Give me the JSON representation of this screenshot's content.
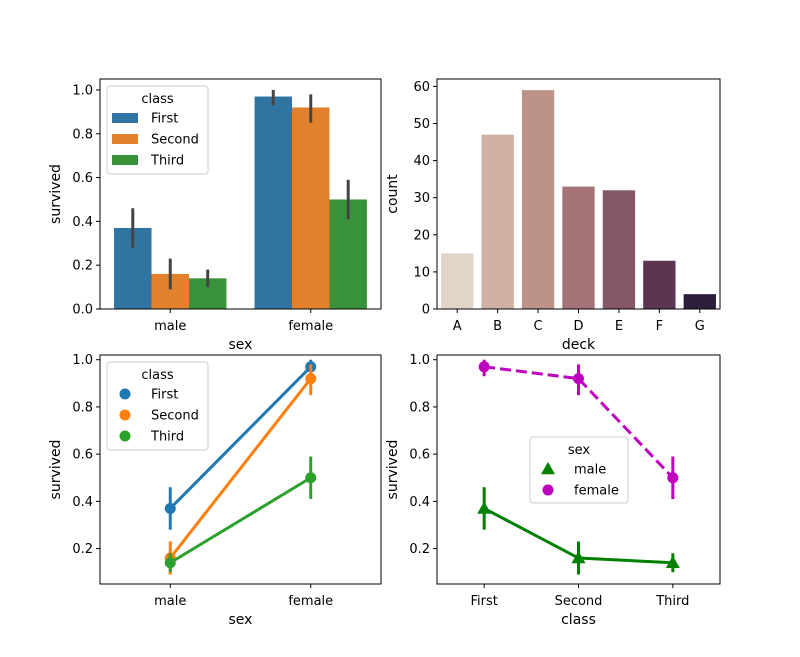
{
  "chart_data": [
    {
      "type": "bar",
      "xlabel": "sex",
      "ylabel": "survived",
      "categories": [
        "male",
        "female"
      ],
      "ylim": [
        0,
        1.05
      ],
      "yticks": [
        "0.0",
        "0.2",
        "0.4",
        "0.6",
        "0.8",
        "1.0"
      ],
      "legend": {
        "title": "class",
        "position": "upper-left"
      },
      "series": [
        {
          "name": "First",
          "color": "#3274a1",
          "values": [
            0.37,
            0.97
          ],
          "ci": [
            [
              0.28,
              0.46
            ],
            [
              0.93,
              1.0
            ]
          ]
        },
        {
          "name": "Second",
          "color": "#e1812c",
          "values": [
            0.16,
            0.92
          ],
          "ci": [
            [
              0.09,
              0.23
            ],
            [
              0.85,
              0.98
            ]
          ]
        },
        {
          "name": "Third",
          "color": "#3a923a",
          "values": [
            0.14,
            0.5
          ],
          "ci": [
            [
              0.1,
              0.18
            ],
            [
              0.41,
              0.59
            ]
          ]
        }
      ]
    },
    {
      "type": "bar",
      "xlabel": "deck",
      "ylabel": "count",
      "categories": [
        "A",
        "B",
        "C",
        "D",
        "E",
        "F",
        "G"
      ],
      "values": [
        15,
        47,
        59,
        33,
        32,
        13,
        4
      ],
      "colors": [
        "#e2d5c8",
        "#d0b1a2",
        "#bb9389",
        "#a57478",
        "#865768",
        "#5c3552",
        "#2d1e3e"
      ],
      "ylim": [
        0,
        62
      ],
      "yticks": [
        "0",
        "10",
        "20",
        "30",
        "40",
        "50",
        "60"
      ]
    },
    {
      "type": "line",
      "xlabel": "sex",
      "ylabel": "survived",
      "categories": [
        "male",
        "female"
      ],
      "ylim": [
        0.05,
        1.02
      ],
      "yticks": [
        "0.2",
        "0.4",
        "0.6",
        "0.8",
        "1.0"
      ],
      "legend": {
        "title": "class",
        "position": "upper-left"
      },
      "series": [
        {
          "name": "First",
          "color": "#1f77b4",
          "values": [
            0.37,
            0.97
          ],
          "ci": [
            [
              0.28,
              0.46
            ],
            [
              0.93,
              1.0
            ]
          ]
        },
        {
          "name": "Second",
          "color": "#ff7f0e",
          "values": [
            0.16,
            0.92
          ],
          "ci": [
            [
              0.09,
              0.23
            ],
            [
              0.85,
              0.98
            ]
          ]
        },
        {
          "name": "Third",
          "color": "#2ca02c",
          "values": [
            0.14,
            0.5
          ],
          "ci": [
            [
              0.1,
              0.18
            ],
            [
              0.41,
              0.59
            ]
          ]
        }
      ]
    },
    {
      "type": "line",
      "xlabel": "class",
      "ylabel": "survived",
      "categories": [
        "First",
        "Second",
        "Third"
      ],
      "ylim": [
        0.05,
        1.02
      ],
      "yticks": [
        "0.2",
        "0.4",
        "0.6",
        "0.8",
        "1.0"
      ],
      "legend": {
        "title": "sex",
        "position": "center"
      },
      "series": [
        {
          "name": "male",
          "color": "#008000",
          "marker": "triangle",
          "linestyle": "solid",
          "values": [
            0.37,
            0.16,
            0.14
          ],
          "ci": [
            [
              0.28,
              0.46
            ],
            [
              0.09,
              0.23
            ],
            [
              0.1,
              0.18
            ]
          ]
        },
        {
          "name": "female",
          "color": "#bf00bf",
          "marker": "circle",
          "linestyle": "dashed",
          "values": [
            0.97,
            0.92,
            0.5
          ],
          "ci": [
            [
              0.93,
              1.0
            ],
            [
              0.85,
              0.98
            ],
            [
              0.41,
              0.59
            ]
          ]
        }
      ]
    }
  ]
}
